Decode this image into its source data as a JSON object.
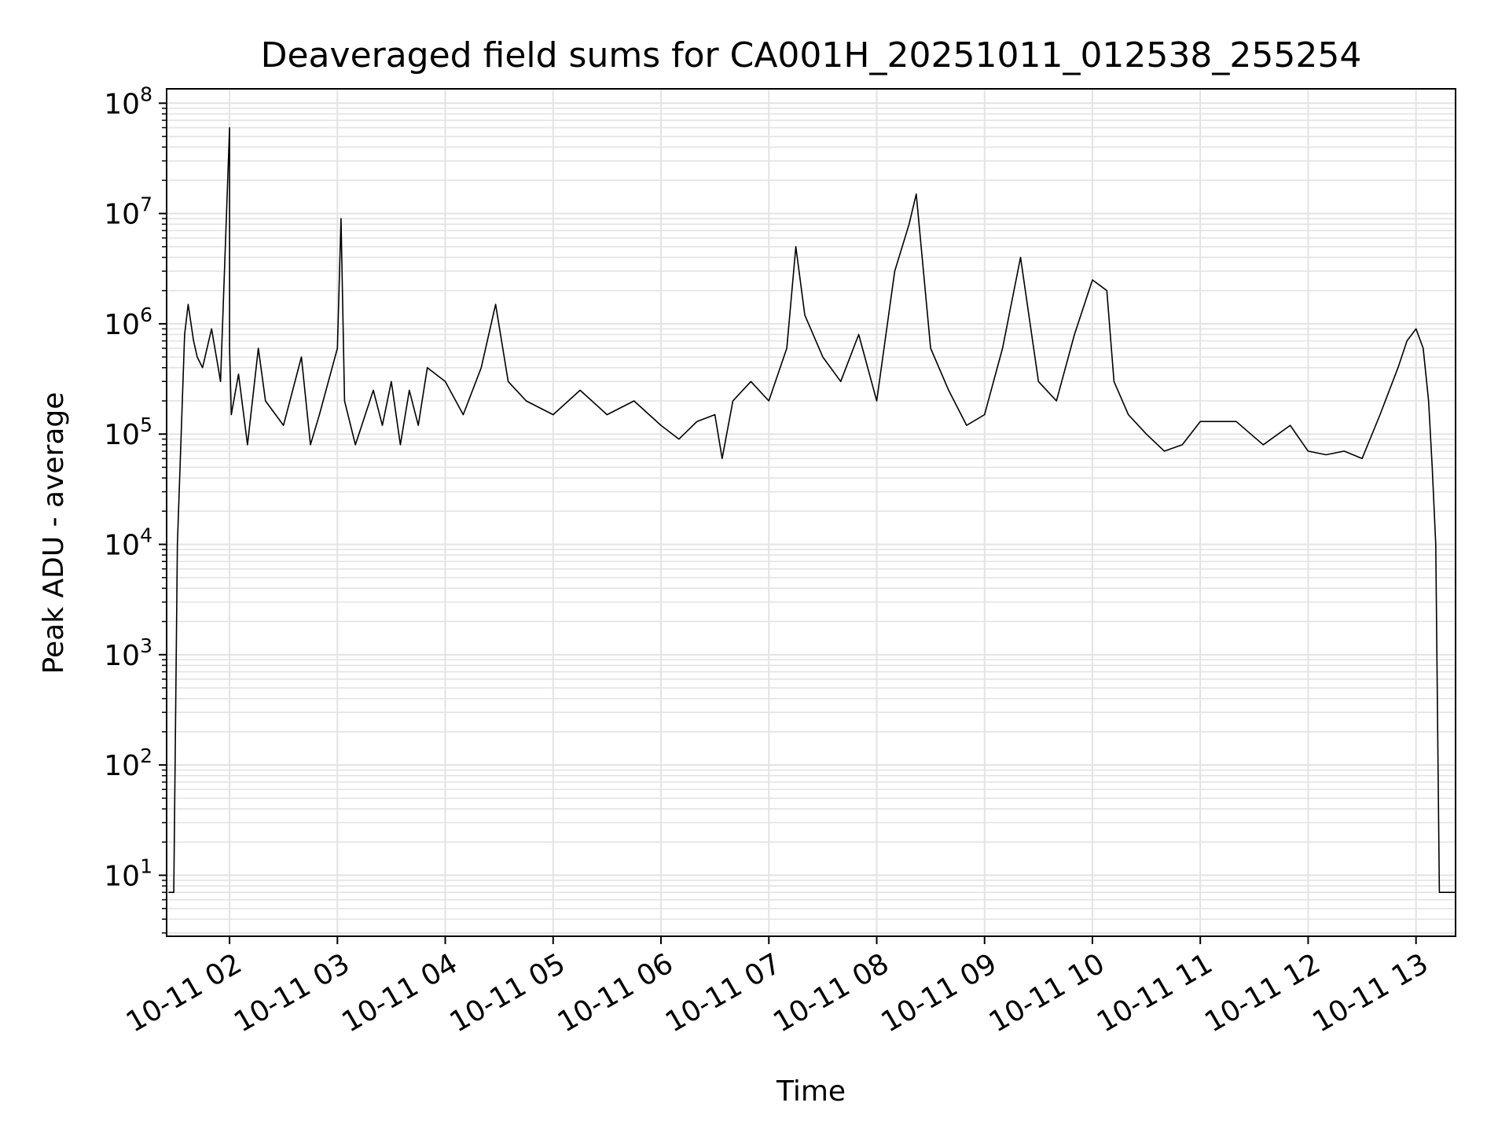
{
  "chart_data": {
    "type": "line",
    "title": "Deaveraged field sums for CA001H_20251011_012538_255254",
    "xlabel": "Time",
    "ylabel": "Peak ADU - average",
    "yscale": "log",
    "ylim": [
      2.8,
      135000000
    ],
    "xlim": [
      "2025-10-11 01:25",
      "2025-10-11 13:22"
    ],
    "grid": true,
    "line_color": "#000000",
    "x_tick_labels": [
      "10-11 02",
      "10-11 03",
      "10-11 04",
      "10-11 05",
      "10-11 06",
      "10-11 07",
      "10-11 08",
      "10-11 09",
      "10-11 10",
      "10-11 11",
      "10-11 12",
      "10-11 13"
    ],
    "y_ticks": [
      {
        "base": "10",
        "exp": "1"
      },
      {
        "base": "10",
        "exp": "2"
      },
      {
        "base": "10",
        "exp": "3"
      },
      {
        "base": "10",
        "exp": "4"
      },
      {
        "base": "10",
        "exp": "5"
      },
      {
        "base": "10",
        "exp": "6"
      },
      {
        "base": "10",
        "exp": "7"
      },
      {
        "base": "10",
        "exp": "8"
      }
    ],
    "series": [
      {
        "x": [
          "2025-10-11 01:26",
          "2025-10-11 01:29",
          "2025-10-11 01:31",
          "2025-10-11 01:35",
          "2025-10-11 01:37",
          "2025-10-11 01:40",
          "2025-10-11 01:42",
          "2025-10-11 01:45",
          "2025-10-11 01:50",
          "2025-10-11 01:55",
          "2025-10-11 02:00",
          "2025-10-11 02:00",
          "2025-10-11 02:01",
          "2025-10-11 02:05",
          "2025-10-11 02:10",
          "2025-10-11 02:16",
          "2025-10-11 02:20",
          "2025-10-11 02:30",
          "2025-10-11 02:40",
          "2025-10-11 02:45",
          "2025-10-11 02:50",
          "2025-10-11 03:00",
          "2025-10-11 03:02",
          "2025-10-11 03:04",
          "2025-10-11 03:10",
          "2025-10-11 03:20",
          "2025-10-11 03:25",
          "2025-10-11 03:30",
          "2025-10-11 03:35",
          "2025-10-11 03:40",
          "2025-10-11 03:45",
          "2025-10-11 03:50",
          "2025-10-11 04:00",
          "2025-10-11 04:10",
          "2025-10-11 04:20",
          "2025-10-11 04:28",
          "2025-10-11 04:35",
          "2025-10-11 04:45",
          "2025-10-11 05:00",
          "2025-10-11 05:15",
          "2025-10-11 05:30",
          "2025-10-11 05:45",
          "2025-10-11 06:00",
          "2025-10-11 06:10",
          "2025-10-11 06:20",
          "2025-10-11 06:30",
          "2025-10-11 06:34",
          "2025-10-11 06:40",
          "2025-10-11 06:50",
          "2025-10-11 07:00",
          "2025-10-11 07:10",
          "2025-10-11 07:15",
          "2025-10-11 07:20",
          "2025-10-11 07:30",
          "2025-10-11 07:40",
          "2025-10-11 07:50",
          "2025-10-11 08:00",
          "2025-10-11 08:10",
          "2025-10-11 08:18",
          "2025-10-11 08:22",
          "2025-10-11 08:30",
          "2025-10-11 08:40",
          "2025-10-11 08:50",
          "2025-10-11 09:00",
          "2025-10-11 09:10",
          "2025-10-11 09:20",
          "2025-10-11 09:30",
          "2025-10-11 09:40",
          "2025-10-11 09:50",
          "2025-10-11 10:00",
          "2025-10-11 10:08",
          "2025-10-11 10:12",
          "2025-10-11 10:20",
          "2025-10-11 10:30",
          "2025-10-11 10:40",
          "2025-10-11 10:50",
          "2025-10-11 11:00",
          "2025-10-11 11:20",
          "2025-10-11 11:35",
          "2025-10-11 11:50",
          "2025-10-11 12:00",
          "2025-10-11 12:10",
          "2025-10-11 12:20",
          "2025-10-11 12:30",
          "2025-10-11 12:40",
          "2025-10-11 12:50",
          "2025-10-11 12:55",
          "2025-10-11 13:00",
          "2025-10-11 13:04",
          "2025-10-11 13:07",
          "2025-10-11 13:09",
          "2025-10-11 13:11",
          "2025-10-11 13:13",
          "2025-10-11 13:22"
        ],
        "values": [
          7,
          7,
          10000,
          800000,
          1500000,
          700000,
          500000,
          400000,
          900000,
          300000,
          60000000,
          600000,
          150000,
          350000,
          80000,
          600000,
          200000,
          120000,
          500000,
          80000,
          150000,
          600000,
          9000000,
          200000,
          80000,
          250000,
          120000,
          300000,
          80000,
          250000,
          120000,
          400000,
          300000,
          150000,
          400000,
          1500000,
          300000,
          200000,
          150000,
          250000,
          150000,
          200000,
          120000,
          90000,
          130000,
          150000,
          60000,
          200000,
          300000,
          200000,
          600000,
          5000000,
          1200000,
          500000,
          300000,
          800000,
          200000,
          3000000,
          8000000,
          15000000,
          600000,
          250000,
          120000,
          150000,
          600000,
          4000000,
          300000,
          200000,
          800000,
          2500000,
          2000000,
          300000,
          150000,
          100000,
          70000,
          80000,
          130000,
          130000,
          80000,
          120000,
          70000,
          65000,
          70000,
          60000,
          150000,
          400000,
          700000,
          900000,
          600000,
          200000,
          50000,
          10000,
          7,
          7
        ]
      }
    ]
  }
}
